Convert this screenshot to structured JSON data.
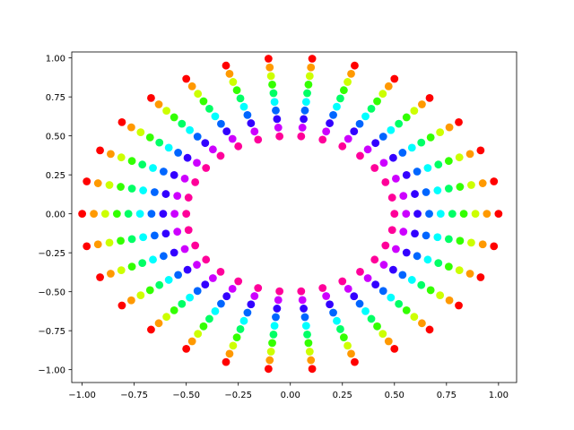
{
  "chart_data": {
    "type": "scatter",
    "title": "",
    "xlabel": "",
    "ylabel": "",
    "xlim": [
      -1.05,
      1.0868
    ],
    "ylim": [
      -1.0824,
      1.0383
    ],
    "xticks": [
      -1.0,
      -0.75,
      -0.5,
      -0.25,
      0.0,
      0.25,
      0.5,
      0.75,
      1.0
    ],
    "xtick_labels": [
      "−1.00",
      "−0.75",
      "−0.50",
      "−0.25",
      "0.00",
      "0.25",
      "0.50",
      "0.75",
      "1.00"
    ],
    "yticks": [
      -1.0,
      -0.75,
      -0.5,
      -0.25,
      0.0,
      0.25,
      0.5,
      0.75,
      1.0
    ],
    "ytick_labels": [
      "−1.00",
      "−0.75",
      "−0.50",
      "−0.25",
      "0.00",
      "0.25",
      "0.50",
      "0.75",
      "1.00"
    ],
    "grid": false,
    "legend": null,
    "colormap": "hsv",
    "arms": 30,
    "points_per_arm": 10,
    "color_by": "radius",
    "radius_range": [
      0.5,
      1.0
    ],
    "x": [
      1.0,
      0.944,
      0.889,
      0.833,
      0.778,
      0.722,
      0.667,
      0.611,
      0.556,
      0.5,
      0.978,
      0.924,
      0.869,
      0.815,
      0.761,
      0.707,
      0.652,
      0.598,
      0.543,
      0.489,
      0.914,
      0.863,
      0.812,
      0.761,
      0.711,
      0.66,
      0.609,
      0.558,
      0.507,
      0.457,
      0.809,
      0.764,
      0.719,
      0.674,
      0.629,
      0.584,
      0.539,
      0.494,
      0.449,
      0.405,
      0.669,
      0.632,
      0.595,
      0.558,
      0.521,
      0.483,
      0.446,
      0.409,
      0.372,
      0.335,
      0.5,
      0.472,
      0.444,
      0.417,
      0.389,
      0.361,
      0.333,
      0.306,
      0.278,
      0.25,
      0.309,
      0.292,
      0.275,
      0.257,
      0.24,
      0.223,
      0.206,
      0.189,
      0.172,
      0.155,
      0.105,
      0.099,
      0.093,
      0.087,
      0.081,
      0.076,
      0.07,
      0.064,
      0.058,
      0.052,
      -0.105,
      -0.099,
      -0.093,
      -0.087,
      -0.081,
      -0.076,
      -0.07,
      -0.064,
      -0.058,
      -0.052,
      -0.309,
      -0.292,
      -0.275,
      -0.257,
      -0.24,
      -0.223,
      -0.206,
      -0.189,
      -0.172,
      -0.155,
      -0.5,
      -0.472,
      -0.444,
      -0.417,
      -0.389,
      -0.361,
      -0.333,
      -0.306,
      -0.278,
      -0.25,
      -0.669,
      -0.632,
      -0.595,
      -0.558,
      -0.521,
      -0.483,
      -0.446,
      -0.409,
      -0.372,
      -0.335,
      -0.809,
      -0.764,
      -0.719,
      -0.674,
      -0.629,
      -0.584,
      -0.539,
      -0.494,
      -0.449,
      -0.405,
      -0.914,
      -0.863,
      -0.812,
      -0.761,
      -0.711,
      -0.66,
      -0.609,
      -0.558,
      -0.507,
      -0.457,
      -0.978,
      -0.924,
      -0.869,
      -0.815,
      -0.761,
      -0.707,
      -0.652,
      -0.598,
      -0.543,
      -0.489,
      -1.0,
      -0.944,
      -0.889,
      -0.833,
      -0.778,
      -0.722,
      -0.667,
      -0.611,
      -0.556,
      -0.5,
      -0.978,
      -0.924,
      -0.869,
      -0.815,
      -0.761,
      -0.707,
      -0.652,
      -0.598,
      -0.543,
      -0.489,
      -0.914,
      -0.863,
      -0.812,
      -0.761,
      -0.711,
      -0.66,
      -0.609,
      -0.558,
      -0.507,
      -0.457,
      -0.809,
      -0.764,
      -0.719,
      -0.674,
      -0.629,
      -0.584,
      -0.539,
      -0.494,
      -0.449,
      -0.405,
      -0.669,
      -0.632,
      -0.595,
      -0.558,
      -0.521,
      -0.483,
      -0.446,
      -0.409,
      -0.372,
      -0.335,
      -0.5,
      -0.472,
      -0.444,
      -0.417,
      -0.389,
      -0.361,
      -0.333,
      -0.306,
      -0.278,
      -0.25,
      -0.309,
      -0.292,
      -0.275,
      -0.257,
      -0.24,
      -0.223,
      -0.206,
      -0.189,
      -0.172,
      -0.155,
      -0.105,
      -0.099,
      -0.093,
      -0.087,
      -0.081,
      -0.076,
      -0.07,
      -0.064,
      -0.058,
      -0.052,
      0.105,
      0.099,
      0.093,
      0.087,
      0.081,
      0.076,
      0.07,
      0.064,
      0.058,
      0.052,
      0.309,
      0.292,
      0.275,
      0.257,
      0.24,
      0.223,
      0.206,
      0.189,
      0.172,
      0.155,
      0.5,
      0.472,
      0.444,
      0.417,
      0.389,
      0.361,
      0.333,
      0.306,
      0.278,
      0.25,
      0.669,
      0.632,
      0.595,
      0.558,
      0.521,
      0.483,
      0.446,
      0.409,
      0.372,
      0.335,
      0.809,
      0.764,
      0.719,
      0.674,
      0.629,
      0.584,
      0.539,
      0.494,
      0.449,
      0.405,
      0.914,
      0.863,
      0.812,
      0.761,
      0.711,
      0.66,
      0.609,
      0.558,
      0.507,
      0.457,
      0.978,
      0.924,
      0.869,
      0.815,
      0.761,
      0.707,
      0.652,
      0.598,
      0.543,
      0.489
    ],
    "y": [
      0.0,
      0.0,
      0.0,
      0.0,
      0.0,
      0.0,
      0.0,
      0.0,
      0.0,
      0.0,
      0.208,
      0.196,
      0.185,
      0.173,
      0.162,
      0.15,
      0.139,
      0.127,
      0.115,
      0.104,
      0.407,
      0.384,
      0.362,
      0.339,
      0.316,
      0.294,
      0.271,
      0.249,
      0.226,
      0.203,
      0.588,
      0.555,
      0.523,
      0.49,
      0.457,
      0.424,
      0.392,
      0.359,
      0.327,
      0.294,
      0.743,
      0.702,
      0.661,
      0.619,
      0.578,
      0.537,
      0.495,
      0.454,
      0.413,
      0.372,
      0.866,
      0.818,
      0.77,
      0.722,
      0.674,
      0.625,
      0.577,
      0.529,
      0.481,
      0.433,
      0.951,
      0.898,
      0.846,
      0.793,
      0.74,
      0.687,
      0.634,
      0.581,
      0.528,
      0.476,
      0.995,
      0.939,
      0.884,
      0.829,
      0.774,
      0.718,
      0.663,
      0.608,
      0.553,
      0.497,
      0.995,
      0.939,
      0.884,
      0.829,
      0.774,
      0.718,
      0.663,
      0.608,
      0.553,
      0.497,
      0.951,
      0.898,
      0.846,
      0.793,
      0.74,
      0.687,
      0.634,
      0.581,
      0.528,
      0.476,
      0.866,
      0.818,
      0.77,
      0.722,
      0.674,
      0.625,
      0.577,
      0.529,
      0.481,
      0.433,
      0.743,
      0.702,
      0.661,
      0.619,
      0.578,
      0.537,
      0.495,
      0.454,
      0.413,
      0.372,
      0.588,
      0.555,
      0.523,
      0.49,
      0.457,
      0.424,
      0.392,
      0.359,
      0.327,
      0.294,
      0.407,
      0.384,
      0.362,
      0.339,
      0.316,
      0.294,
      0.271,
      0.249,
      0.226,
      0.203,
      0.208,
      0.196,
      0.185,
      0.173,
      0.162,
      0.15,
      0.139,
      0.127,
      0.115,
      0.104,
      0.0,
      0.0,
      0.0,
      0.0,
      0.0,
      0.0,
      0.0,
      0.0,
      0.0,
      0.0,
      -0.208,
      -0.196,
      -0.185,
      -0.173,
      -0.162,
      -0.15,
      -0.139,
      -0.127,
      -0.115,
      -0.104,
      -0.407,
      -0.384,
      -0.362,
      -0.339,
      -0.316,
      -0.294,
      -0.271,
      -0.249,
      -0.226,
      -0.203,
      -0.588,
      -0.555,
      -0.523,
      -0.49,
      -0.457,
      -0.424,
      -0.392,
      -0.359,
      -0.327,
      -0.294,
      -0.743,
      -0.702,
      -0.661,
      -0.619,
      -0.578,
      -0.537,
      -0.495,
      -0.454,
      -0.413,
      -0.372,
      -0.866,
      -0.818,
      -0.77,
      -0.722,
      -0.674,
      -0.625,
      -0.577,
      -0.529,
      -0.481,
      -0.433,
      -0.951,
      -0.898,
      -0.846,
      -0.793,
      -0.74,
      -0.687,
      -0.634,
      -0.581,
      -0.528,
      -0.476,
      -0.995,
      -0.939,
      -0.884,
      -0.829,
      -0.774,
      -0.718,
      -0.663,
      -0.608,
      -0.553,
      -0.497,
      -0.995,
      -0.939,
      -0.884,
      -0.829,
      -0.774,
      -0.718,
      -0.663,
      -0.608,
      -0.553,
      -0.497,
      -0.951,
      -0.898,
      -0.846,
      -0.793,
      -0.74,
      -0.687,
      -0.634,
      -0.581,
      -0.528,
      -0.476,
      -0.866,
      -0.818,
      -0.77,
      -0.722,
      -0.674,
      -0.625,
      -0.577,
      -0.529,
      -0.481,
      -0.433,
      -0.743,
      -0.702,
      -0.661,
      -0.619,
      -0.578,
      -0.537,
      -0.495,
      -0.454,
      -0.413,
      -0.372,
      -0.588,
      -0.555,
      -0.523,
      -0.49,
      -0.457,
      -0.424,
      -0.392,
      -0.359,
      -0.327,
      -0.294,
      -0.407,
      -0.384,
      -0.362,
      -0.339,
      -0.316,
      -0.294,
      -0.271,
      -0.249,
      -0.226,
      -0.203,
      -0.208,
      -0.196,
      -0.185,
      -0.173,
      -0.162,
      -0.15,
      -0.139,
      -0.127,
      -0.115,
      -0.104
    ]
  }
}
